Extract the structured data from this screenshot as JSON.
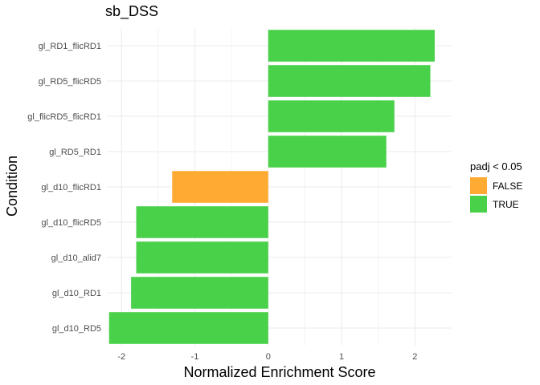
{
  "chart_data": {
    "type": "bar",
    "orientation": "horizontal",
    "title": "sb_DSS",
    "xlabel": "Normalized Enrichment Score",
    "ylabel": "Condition",
    "xlim": [
      -2.2,
      2.5
    ],
    "x_ticks": [
      -2,
      -1,
      0,
      1,
      2
    ],
    "grid": true,
    "legend": {
      "title": "padj < 0.05",
      "position": "right",
      "entries": [
        {
          "label": "FALSE",
          "color": "#FFAB33"
        },
        {
          "label": "TRUE",
          "color": "#4AD14A"
        }
      ]
    },
    "categories": [
      "gl_RD1_flicRD1",
      "gl_RD5_flicRD5",
      "gl_flicRD5_flicRD1",
      "gl_RD5_RD1",
      "gl_d10_flicRD1",
      "gl_d10_flicRD5",
      "gl_d10_alid7",
      "gl_d10_RD1",
      "gl_d10_RD5"
    ],
    "values": [
      2.27,
      2.21,
      1.72,
      1.61,
      -1.31,
      -1.8,
      -1.8,
      -1.87,
      -2.17
    ],
    "significant": [
      "TRUE",
      "TRUE",
      "TRUE",
      "TRUE",
      "FALSE",
      "TRUE",
      "TRUE",
      "TRUE",
      "TRUE"
    ]
  }
}
